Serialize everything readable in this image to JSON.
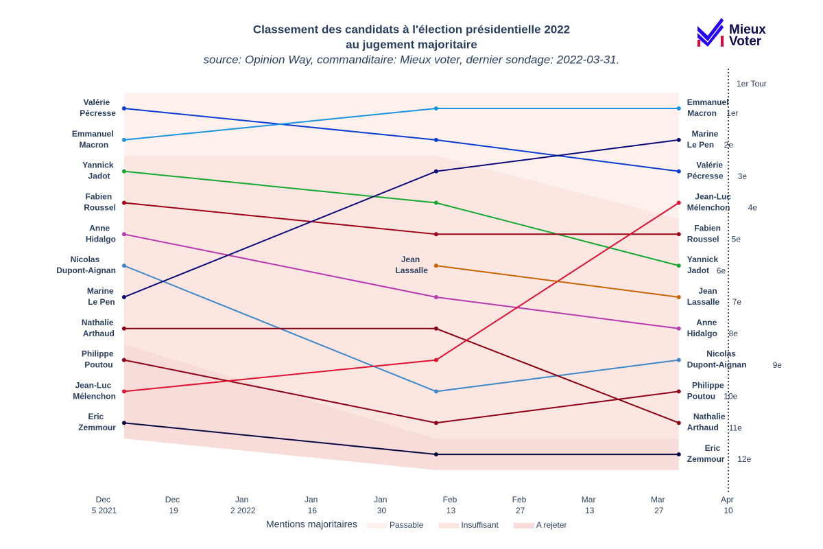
{
  "chart_data": {
    "type": "line",
    "title": "Classement des candidats à l'élection présidentielle 2022",
    "title_line2": "au jugement majoritaire",
    "subtitle": "source: Opinion Way, commanditaire: Mieux voter, dernier sondage: 2022-03-31.",
    "x": [
      "2021-12-09",
      "2022-02-10",
      "2022-03-31"
    ],
    "xlim": [
      "2021-11-25",
      "2022-04-14"
    ],
    "xticks": [
      {
        "value": "2021-12-05",
        "label": "Dec 5\n2021"
      },
      {
        "value": "2021-12-19",
        "label": "Dec 19"
      },
      {
        "value": "2022-01-02",
        "label": "Jan 2\n2022"
      },
      {
        "value": "2022-01-16",
        "label": "Jan 16"
      },
      {
        "value": "2022-01-30",
        "label": "Jan 30"
      },
      {
        "value": "2022-02-13",
        "label": "Feb 13"
      },
      {
        "value": "2022-02-27",
        "label": "Feb 27"
      },
      {
        "value": "2022-03-13",
        "label": "Mar 13"
      },
      {
        "value": "2022-03-27",
        "label": "Mar 27"
      },
      {
        "value": "2022-04-10",
        "label": "Apr 10"
      }
    ],
    "ylim": [
      0,
      13.5
    ],
    "y_reversed": true,
    "series": [
      {
        "name": "Valérie Pécresse",
        "color": "#0a3cd4",
        "values": [
          1,
          2,
          3
        ],
        "value_labels": [
          null,
          null,
          "3e"
        ]
      },
      {
        "name": "Emmanuel Macron",
        "color": "#1793e0",
        "values": [
          2,
          1,
          1
        ],
        "value_labels": [
          null,
          null,
          "1er"
        ]
      },
      {
        "name": "Yannick Jadot",
        "color": "#14a830",
        "values": [
          3,
          4,
          6
        ],
        "value_labels": [
          null,
          null,
          "6e"
        ]
      },
      {
        "name": "Fabien Roussel",
        "color": "#a00018",
        "values": [
          4,
          5,
          5
        ],
        "value_labels": [
          null,
          null,
          "5e"
        ]
      },
      {
        "name": "Anne Hidalgo",
        "color": "#b838b0",
        "values": [
          5,
          7,
          8
        ],
        "value_labels": [
          null,
          null,
          "8e"
        ]
      },
      {
        "name": "Nicolas Dupont-Aignan",
        "color": "#3c88c8",
        "values": [
          6,
          10,
          9
        ],
        "value_labels": [
          null,
          null,
          "9e"
        ]
      },
      {
        "name": "Marine Le Pen",
        "color": "#0a0a7a",
        "values": [
          7,
          3,
          2
        ],
        "value_labels": [
          null,
          null,
          "2e"
        ]
      },
      {
        "name": "Nathalie Arthaud",
        "color": "#8c0010",
        "values": [
          8,
          8,
          11
        ],
        "value_labels": [
          null,
          null,
          "11e"
        ]
      },
      {
        "name": "Philippe Poutou",
        "color": "#900018",
        "values": [
          9,
          11,
          10
        ],
        "value_labels": [
          null,
          null,
          "10e"
        ]
      },
      {
        "name": "Jean-Luc Mélenchon",
        "color": "#e01030",
        "values": [
          10,
          9,
          4
        ],
        "value_labels": [
          null,
          null,
          "4e"
        ]
      },
      {
        "name": "Eric Zemmour",
        "color": "#0a0a40",
        "values": [
          11,
          12,
          12
        ],
        "value_labels": [
          null,
          null,
          "12e"
        ]
      },
      {
        "name": "Jean Lassalle",
        "color": "#c86400",
        "values": [
          null,
          6,
          7
        ],
        "value_labels": [
          null,
          null,
          "7e"
        ]
      }
    ],
    "legend_title": "Mentions majoritaires",
    "bands": [
      {
        "name": "Passable",
        "color": "#fdf0ed",
        "top": [
          0.5,
          0.5,
          0.5
        ],
        "bottom": [
          2.5,
          2.5,
          4.5
        ]
      },
      {
        "name": "Insuffisant",
        "color": "#fce6e2",
        "top": [
          2.5,
          2.5,
          4.5
        ],
        "bottom": [
          8.5,
          11.5,
          11.5
        ]
      },
      {
        "name": "A rejeter",
        "color": "#f8dcda",
        "top": [
          8.5,
          11.5,
          11.5
        ],
        "bottom": [
          11.5,
          12.5,
          12.5
        ]
      }
    ],
    "vline": {
      "x": "2022-04-10",
      "label": "1er Tour"
    }
  },
  "logo": {
    "line1": "Mieux",
    "line2": "Voter"
  }
}
